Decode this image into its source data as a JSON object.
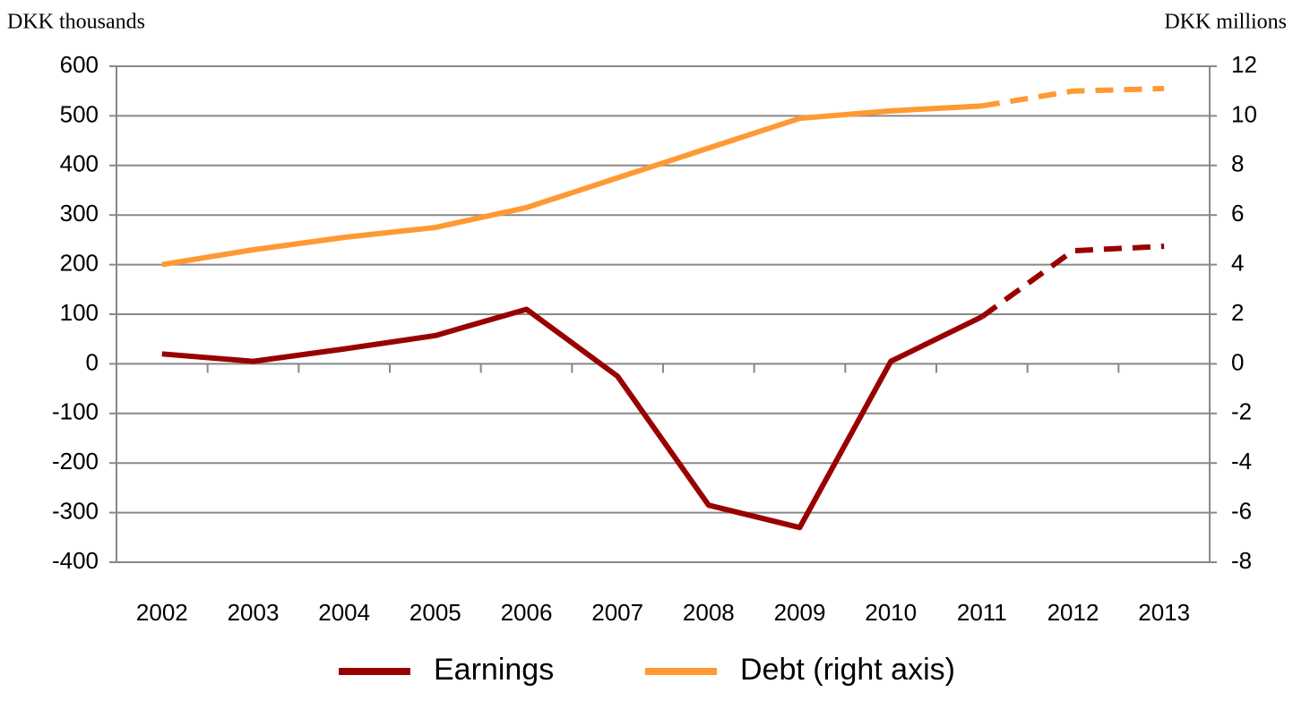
{
  "chart_data": {
    "type": "line",
    "y_label": "DKK thousands",
    "y2_label": "DKK millions",
    "categories": [
      "2002",
      "2003",
      "2004",
      "2005",
      "2006",
      "2007",
      "2008",
      "2009",
      "2010",
      "2011",
      "2012",
      "2013"
    ],
    "dash_from": "2011",
    "series": [
      {
        "name": "Earnings",
        "color": "#990000",
        "values": [
          20,
          5,
          30,
          57,
          110,
          -25,
          -285,
          -330,
          5,
          95,
          228,
          237
        ]
      },
      {
        "name": "Debt (right axis)",
        "color": "#ff9933",
        "axis": "y2",
        "values": [
          4.0,
          4.6,
          5.1,
          5.5,
          6.3,
          7.5,
          8.7,
          9.9,
          10.2,
          10.4,
          11.0,
          11.1
        ]
      }
    ],
    "ylim": [
      -400,
      600
    ],
    "yticks": [
      -400,
      -300,
      -200,
      -100,
      0,
      100,
      200,
      300,
      400,
      500,
      600
    ],
    "y2lim": [
      -8,
      12
    ],
    "y2ticks": [
      -8,
      -6,
      -4,
      -2,
      0,
      2,
      4,
      6,
      8,
      10,
      12
    ],
    "grid": true,
    "legend": "bottom"
  }
}
